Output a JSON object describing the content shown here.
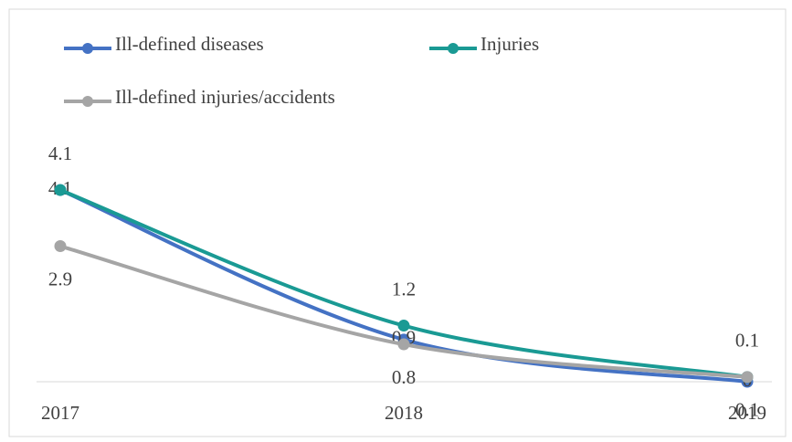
{
  "chart_data": {
    "type": "line",
    "categories": [
      "2017",
      "2018",
      "2019"
    ],
    "series": [
      {
        "name": "Ill-defined diseases",
        "color": "#4472c4",
        "values": [
          4.1,
          0.9,
          0.0
        ]
      },
      {
        "name": "Injuries",
        "color": "#1a9a94",
        "values": [
          4.1,
          1.2,
          0.1
        ]
      },
      {
        "name": "Ill-defined injuries/accidents",
        "color": "#a5a5a5",
        "values": [
          2.9,
          0.8,
          0.1
        ]
      }
    ],
    "ylim": [
      0,
      5
    ]
  }
}
